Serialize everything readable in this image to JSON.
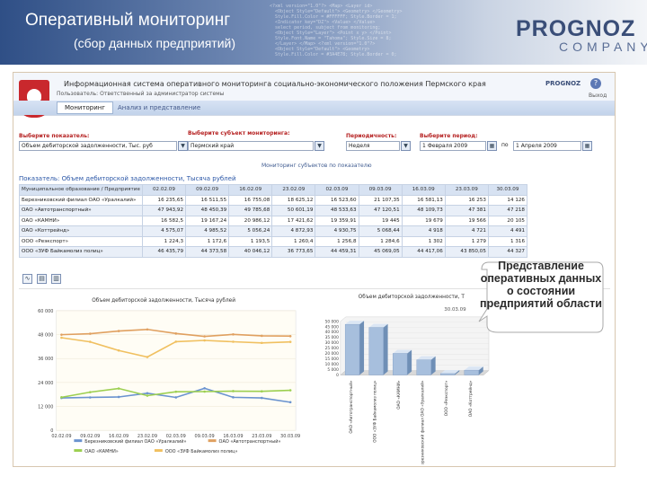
{
  "slide": {
    "title": "Оперативный мониторинг",
    "subtitle": "(сбор данных предприятий)",
    "logo_main": "PROGNOZ",
    "logo_sub": "COMPANY",
    "callout": "Представление оперативных данных о состоянии предприятий области"
  },
  "app": {
    "title": "Информационная система оперативного мониторинга социально-экономического положения Пермского края",
    "subtitle": "Пользователь: Ответственный за администратор системы",
    "logo": "PROGNOZ",
    "help": "?",
    "exit": "Выход",
    "tabs": [
      {
        "label": "Мониторинг",
        "active": true
      },
      {
        "label": "Анализ и представление",
        "active": false
      }
    ]
  },
  "filters": {
    "indicator_label": "Выберите показатель:",
    "indicator_value": "Объем дебиторской задолженности, Тыс. руб",
    "subject_label": "Выберите субъект мониторинга:",
    "subject_value": "Пермский край",
    "period_label": "Выберите период:",
    "period_value": "1 Февраля 2009",
    "periodicity_label": "Периодичность:",
    "periodicity_value": "Неделя",
    "to_label": "по",
    "date_to": "1 Апреля 2009",
    "combo_icon": "▼",
    "calendar_icon": "▦"
  },
  "table": {
    "caption": "Мониторинг субъектов по показателю",
    "indicator": "Показатель: Объем дебиторской задолженности, Тысяча рублей",
    "columns": [
      "Муниципальное образование / Предприятие",
      "02.02.09",
      "09.02.09",
      "16.02.09",
      "23.02.09",
      "02.03.09",
      "09.03.09",
      "16.03.09",
      "23.03.09",
      "30.03.09"
    ],
    "rows": [
      [
        "Березниковский филиал ОАО «Уралкалий»",
        "16 235,65",
        "16 511,55",
        "16 755,08",
        "18 625,12",
        "16 523,60",
        "21 107,35",
        "16 581,13",
        "16 253",
        "14 126"
      ],
      [
        "ОАО «Автотранспортный»",
        "47 943,92",
        "48 450,39",
        "49 785,68",
        "50 601,19",
        "48 533,63",
        "47 120,51",
        "48 109,73",
        "47 381",
        "47 218"
      ],
      [
        "ОАО «КАМНИ»",
        "16 582,5",
        "19 167,24",
        "20 986,12",
        "17 421,62",
        "19 359,91",
        "19 445",
        "19 679",
        "19 566",
        "20 105"
      ],
      [
        "ОАО «Коттрейнд»",
        "4 575,07",
        "4 985,52",
        "5 056,24",
        "4 872,93",
        "4 930,75",
        "5 068,44",
        "4 918",
        "4 721",
        "4 491"
      ],
      [
        "ООО «Реэкспорт»",
        "1 224,3",
        "1 172,6",
        "1 193,5",
        "1 260,4",
        "1 256,8",
        "1 284,6",
        "1 302",
        "1 279",
        "1 316"
      ],
      [
        "ООО «ЗУФ Байкамолиз полиц»",
        "46 435,79",
        "44 373,58",
        "40 046,12",
        "36 773,65",
        "44 459,31",
        "45 069,05",
        "44 417,06",
        "43 850,05",
        "44 327"
      ]
    ]
  },
  "line_chart": {
    "title": "Объем дебиторской задолженности, Тысяча рублей",
    "legend": [
      "Березниковский филиал ОАО «Уралкалий»",
      "ОАО «Автотранспортный»",
      "ОАО «КАМНИ»",
      "ООО «ЗУФ Байкамолиз полиц»"
    ]
  },
  "bar_chart": {
    "title": "Объем дебиторской задолженности, Т",
    "period": "30.03.09"
  },
  "chart_data": [
    {
      "type": "line",
      "title": "Объем дебиторской задолженности, Тысяча рублей",
      "x": [
        "02.02.09",
        "09.02.09",
        "16.02.09",
        "23.02.09",
        "02.03.09",
        "09.03.09",
        "16.03.09",
        "23.03.09",
        "30.03.09"
      ],
      "ylim": [
        0,
        60000
      ],
      "yticks": [
        "0",
        "12 000",
        "24 000",
        "36 000",
        "48 000",
        "60 000"
      ],
      "series": [
        {
          "name": "Березниковский филиал ОАО «Уралкалий»",
          "color": "#6a93cf",
          "values": [
            16236,
            16512,
            16755,
            18625,
            16524,
            21107,
            16581,
            16253,
            14126
          ]
        },
        {
          "name": "ОАО «Автотранспортный»",
          "color": "#e0a060",
          "values": [
            47944,
            48450,
            49786,
            50601,
            48534,
            47121,
            48110,
            47381,
            47218
          ]
        },
        {
          "name": "ОАО «КАМНИ»",
          "color": "#9ccf50",
          "values": [
            16583,
            19167,
            20986,
            17422,
            19360,
            19445,
            19679,
            19566,
            20105
          ]
        },
        {
          "name": "ООО «ЗУФ Байкамолиз полиц»",
          "color": "#f0c060",
          "values": [
            46436,
            44374,
            40046,
            36774,
            44459,
            45069,
            44417,
            43850,
            44327
          ]
        }
      ]
    },
    {
      "type": "bar",
      "title": "Объем дебиторской задолженности, Т",
      "categories": [
        "ОАО «Автотранспортный»",
        "ООО «ЗУФ Байкамолиз полиц»",
        "ОАО «КАМНИ»",
        "Березниковский филиал ОАО «Уралкалий»",
        "ООО «Реэкспорт»",
        "ОАО «Коттрейнд»"
      ],
      "values": [
        47218,
        44327,
        20105,
        14126,
        1316,
        4491
      ],
      "ylim": [
        0,
        50000
      ],
      "yticks": [
        "0",
        "5 000",
        "10 000",
        "15 000",
        "20 000",
        "25 000",
        "30 000",
        "35 000",
        "40 000",
        "45 000",
        "50 000"
      ]
    }
  ]
}
